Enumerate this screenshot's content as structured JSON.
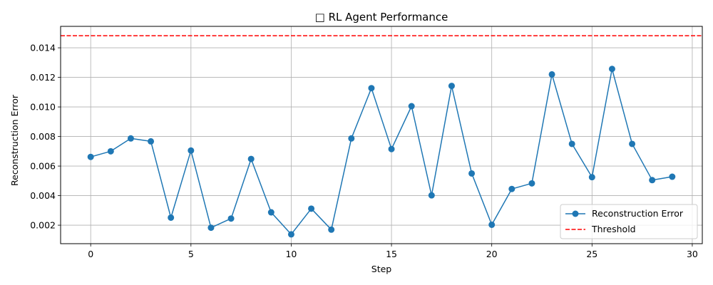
{
  "chart_data": {
    "type": "line",
    "title": "□ RL Agent Performance",
    "xlabel": "Step",
    "ylabel": "Reconstruction Error",
    "xlim": [
      -1.5,
      30.5
    ],
    "ylim": [
      0.00075,
      0.01545
    ],
    "xticks": [
      0,
      5,
      10,
      15,
      20,
      25,
      30
    ],
    "xtick_labels": [
      "0",
      "5",
      "10",
      "15",
      "20",
      "25",
      "30"
    ],
    "yticks": [
      0.002,
      0.004,
      0.006,
      0.008,
      0.01,
      0.012,
      0.014
    ],
    "ytick_labels": [
      "0.002",
      "0.004",
      "0.006",
      "0.008",
      "0.010",
      "0.012",
      "0.014"
    ],
    "grid": true,
    "legend_position": "lower-right",
    "series": [
      {
        "name": "Reconstruction Error",
        "color": "#1f77b4",
        "marker": "circle",
        "x": [
          0,
          1,
          2,
          3,
          4,
          5,
          6,
          7,
          8,
          9,
          10,
          11,
          12,
          13,
          14,
          15,
          16,
          17,
          18,
          19,
          20,
          21,
          22,
          23,
          24,
          25,
          26,
          27,
          28,
          29
        ],
        "values": [
          0.00662,
          0.007,
          0.00787,
          0.00767,
          0.00251,
          0.00705,
          0.00183,
          0.00245,
          0.00648,
          0.00287,
          0.00138,
          0.00312,
          0.0017,
          0.00787,
          0.01127,
          0.00715,
          0.01005,
          0.00402,
          0.01142,
          0.0055,
          0.00203,
          0.00445,
          0.00483,
          0.0122,
          0.0075,
          0.00525,
          0.01257,
          0.0075,
          0.00505,
          0.00528
        ]
      }
    ],
    "threshold": {
      "name": "Threshold",
      "value": 0.01482,
      "color": "#ff0000",
      "style": "dashed"
    }
  }
}
